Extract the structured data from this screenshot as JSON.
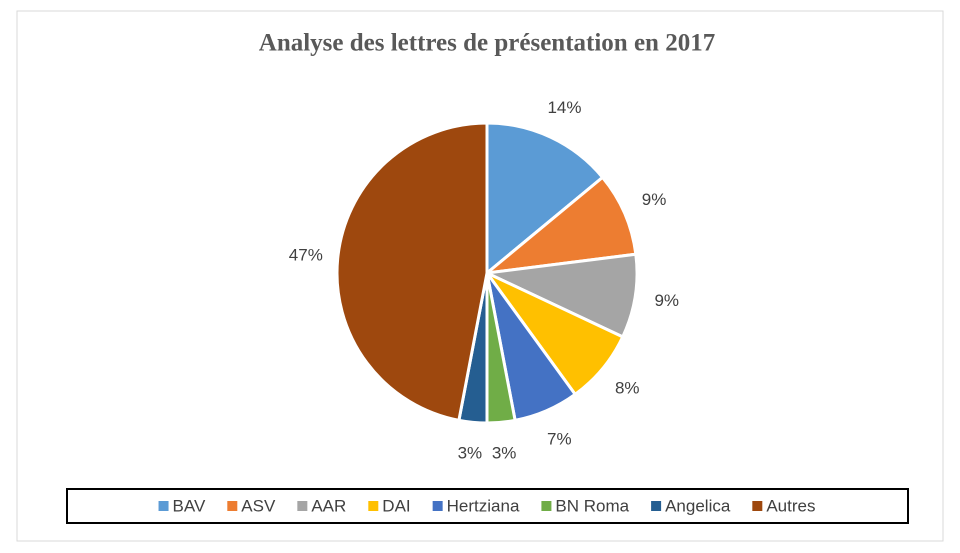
{
  "chart_data": {
    "type": "pie",
    "title": "Analyse des lettres de présentation en 2017",
    "categories": [
      "BAV",
      "ASV",
      "AAR",
      "DAI",
      "Hertziana",
      "BN Roma",
      "Angelica",
      "Autres"
    ],
    "values": [
      14,
      9,
      9,
      8,
      7,
      3,
      3,
      47
    ],
    "value_labels": [
      "14%",
      "9%",
      "9%",
      "8%",
      "7%",
      "3%",
      "3%",
      "47%"
    ],
    "colors": [
      "#5b9bd5",
      "#ed7d31",
      "#a5a5a5",
      "#ffc000",
      "#4472c4",
      "#70ad47",
      "#255e91",
      "#9e480e"
    ],
    "legend": "bottom"
  }
}
